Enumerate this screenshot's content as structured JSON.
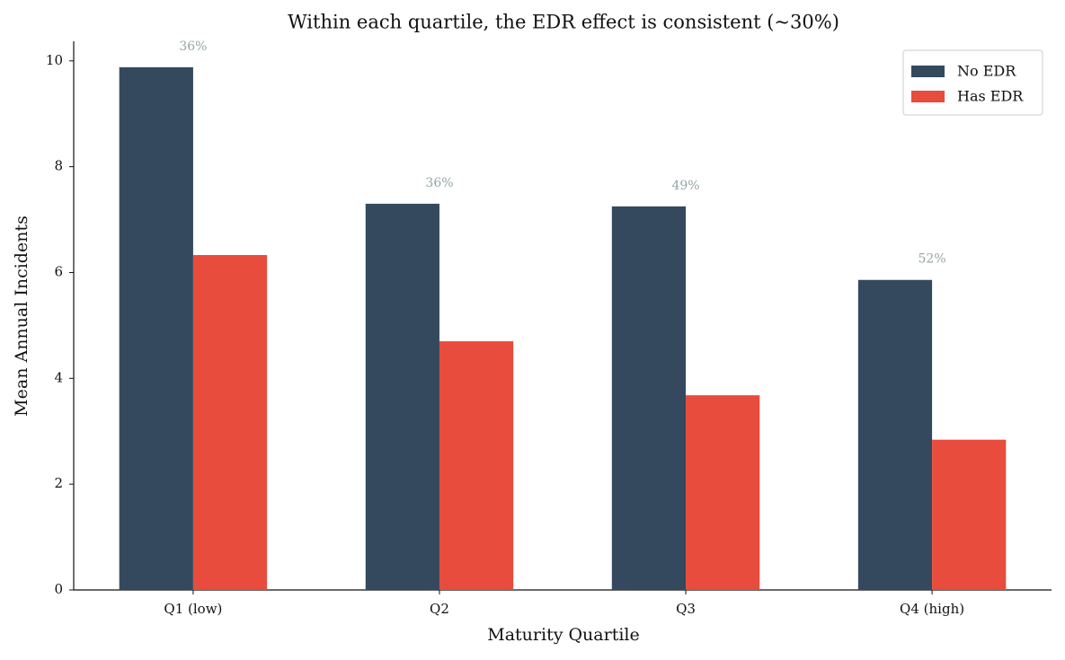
{
  "chart_data": {
    "type": "bar",
    "title": "Within each quartile, the EDR effect is consistent (~30%)",
    "x_label": "Maturity Quartile",
    "y_label": "Mean Annual Incidents",
    "categories": [
      "Q1 (low)",
      "Q2",
      "Q3",
      "Q4 (high)"
    ],
    "series": [
      {
        "name": "No EDR",
        "color": "#34495e",
        "values": [
          9.88,
          7.3,
          7.25,
          5.86
        ]
      },
      {
        "name": "Has EDR",
        "color": "#e74c3c",
        "values": [
          6.33,
          4.7,
          3.68,
          2.84
        ]
      }
    ],
    "annotations": [
      "36%",
      "36%",
      "49%",
      "52%"
    ],
    "annotation_color": "#95a5a6",
    "ylim": [
      0,
      10.37
    ],
    "yticks": [
      0,
      2,
      4,
      6,
      8,
      10
    ],
    "grid": false,
    "legend": "upper right"
  }
}
